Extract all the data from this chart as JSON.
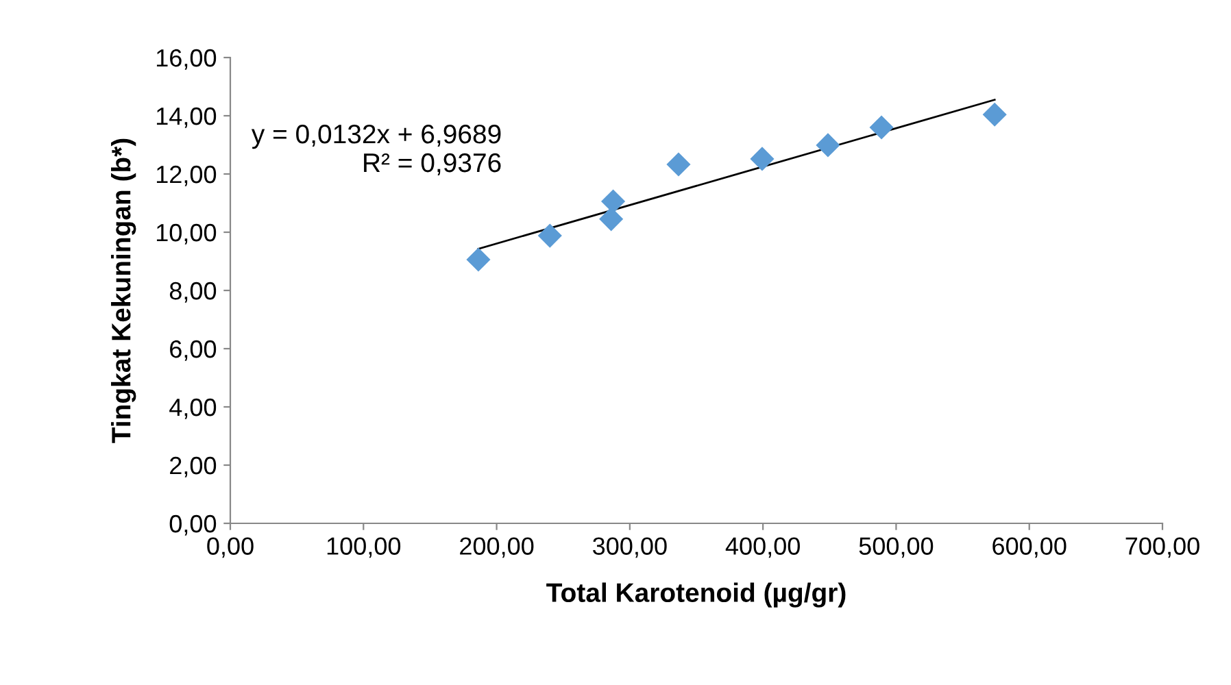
{
  "chart_data": {
    "type": "scatter",
    "xlabel": "Total Karotenoid (µg/gr)",
    "ylabel": "Tingkat Kekuningan (b*)",
    "marker": "diamond",
    "grid": false,
    "series": [
      {
        "color": "#5b9bd5",
        "x": [
          186.3,
          240,
          286,
          287.5,
          336.6,
          399.4,
          448.8,
          489,
          574
        ],
        "values": [
          9.06,
          9.88,
          10.45,
          11.06,
          12.33,
          12.52,
          12.99,
          13.6,
          14.04
        ]
      },
      {
        "type": "line",
        "color": "#000000",
        "marker": "none",
        "x": [
          186.3,
          574
        ],
        "values": [
          9.43,
          14.55
        ]
      }
    ],
    "annotations": [
      "y = 0,0132x + 6,9689\nR² = 0,9376"
    ],
    "xlim": [
      0,
      700
    ],
    "xticks": [
      {
        "value": 0,
        "label": "0,00"
      },
      {
        "value": 100,
        "label": "100,00"
      },
      {
        "value": 200,
        "label": "200,00"
      },
      {
        "value": 300,
        "label": "300,00"
      },
      {
        "value": 400,
        "label": "400,00"
      },
      {
        "value": 500,
        "label": "500,00"
      },
      {
        "value": 600,
        "label": "600,00"
      },
      {
        "value": 700,
        "label": "700,00"
      }
    ],
    "ylim": [
      0,
      16
    ],
    "yticks": [
      {
        "value": 0,
        "label": "0,00"
      },
      {
        "value": 2,
        "label": "2,00"
      },
      {
        "value": 4,
        "label": "4,00"
      },
      {
        "value": 6,
        "label": "6,00"
      },
      {
        "value": 8,
        "label": "8,00"
      },
      {
        "value": 10,
        "label": "10,00"
      },
      {
        "value": 12,
        "label": "12,00"
      },
      {
        "value": 14,
        "label": "14,00"
      },
      {
        "value": 16,
        "label": "16,00"
      }
    ]
  }
}
